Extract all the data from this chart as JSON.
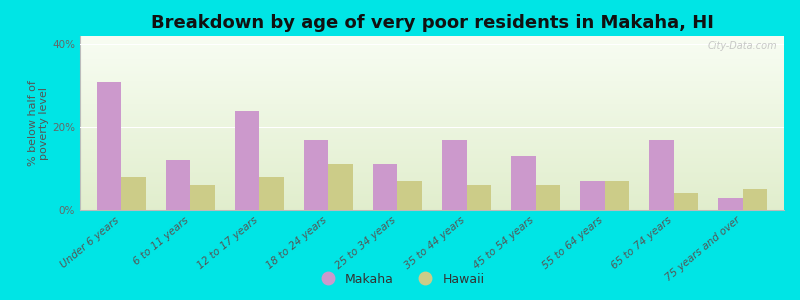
{
  "title": "Breakdown by age of very poor residents in Makaha, HI",
  "categories": [
    "Under 6 years",
    "6 to 11 years",
    "12 to 17 years",
    "18 to 24 years",
    "25 to 34 years",
    "35 to 44 years",
    "45 to 54 years",
    "55 to 64 years",
    "65 to 74 years",
    "75 years and over"
  ],
  "makaha_values": [
    31,
    12,
    24,
    17,
    11,
    17,
    13,
    7,
    17,
    3
  ],
  "hawaii_values": [
    8,
    6,
    8,
    11,
    7,
    6,
    6,
    7,
    4,
    5
  ],
  "makaha_color": "#cc99cc",
  "hawaii_color": "#cccc88",
  "background_outer": "#00e5e5",
  "ylabel": "% below half of\npoverty level",
  "ylim": [
    0,
    42
  ],
  "yticks": [
    0,
    20,
    40
  ],
  "ytick_labels": [
    "0%",
    "20%",
    "40%"
  ],
  "bar_width": 0.35,
  "title_fontsize": 13,
  "axis_label_fontsize": 8,
  "tick_fontsize": 7.5,
  "legend_fontsize": 9,
  "watermark": "City-Data.com"
}
